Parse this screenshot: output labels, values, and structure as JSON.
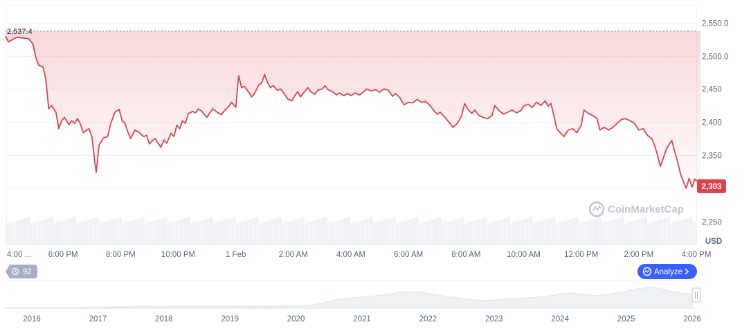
{
  "chart_data": {
    "type": "area",
    "unit_label": "USD",
    "y_axis": {
      "range": [
        2215,
        2575
      ],
      "ticks": [
        2250,
        2300,
        2350,
        2400,
        2450,
        2500,
        2550
      ],
      "tick_labels": [
        "2,250",
        "2,300",
        "2,350",
        "2,400",
        "2,450",
        "2,500.0",
        "2,550.0"
      ],
      "hidden_ticks": [
        2300
      ],
      "position": "right"
    },
    "x_axis": {
      "range_hours": [
        16,
        40
      ],
      "ticks": [
        {
          "t": 16,
          "label": "4:00 ..."
        },
        {
          "t": 18,
          "label": "6:00 PM"
        },
        {
          "t": 20,
          "label": "8:00 PM"
        },
        {
          "t": 22,
          "label": "10:00 PM"
        },
        {
          "t": 24,
          "label": "1 Feb"
        },
        {
          "t": 26,
          "label": "2:00 AM"
        },
        {
          "t": 28,
          "label": "4:00 AM"
        },
        {
          "t": 30,
          "label": "6:00 AM"
        },
        {
          "t": 32,
          "label": "8:00 AM"
        },
        {
          "t": 34,
          "label": "10:00 AM"
        },
        {
          "t": 36,
          "label": "12:00 PM"
        },
        {
          "t": 38,
          "label": "2:00 PM"
        },
        {
          "t": 40,
          "label": "4:00 PM"
        }
      ]
    },
    "open_price": 2537.4,
    "open_label": "2,537.4",
    "current_price": 2303,
    "current_label": "2,303",
    "grid": true,
    "series": [
      {
        "values": [
          [
            16.0,
            2530
          ],
          [
            16.1,
            2521
          ],
          [
            16.25,
            2525
          ],
          [
            16.4,
            2528
          ],
          [
            16.6,
            2527
          ],
          [
            16.8,
            2526
          ],
          [
            16.95,
            2518
          ],
          [
            17.05,
            2498
          ],
          [
            17.15,
            2486
          ],
          [
            17.3,
            2483
          ],
          [
            17.4,
            2465
          ],
          [
            17.5,
            2420
          ],
          [
            17.6,
            2425
          ],
          [
            17.75,
            2415
          ],
          [
            17.85,
            2390
          ],
          [
            17.95,
            2402
          ],
          [
            18.05,
            2407
          ],
          [
            18.2,
            2396
          ],
          [
            18.3,
            2402
          ],
          [
            18.4,
            2398
          ],
          [
            18.5,
            2405
          ],
          [
            18.6,
            2397
          ],
          [
            18.7,
            2384
          ],
          [
            18.8,
            2387
          ],
          [
            18.9,
            2390
          ],
          [
            19.0,
            2378
          ],
          [
            19.1,
            2340
          ],
          [
            19.15,
            2324
          ],
          [
            19.25,
            2365
          ],
          [
            19.4,
            2376
          ],
          [
            19.55,
            2378
          ],
          [
            19.65,
            2397
          ],
          [
            19.8,
            2415
          ],
          [
            19.95,
            2419
          ],
          [
            20.05,
            2402
          ],
          [
            20.15,
            2398
          ],
          [
            20.25,
            2385
          ],
          [
            20.35,
            2375
          ],
          [
            20.5,
            2388
          ],
          [
            20.65,
            2384
          ],
          [
            20.8,
            2378
          ],
          [
            20.9,
            2380
          ],
          [
            21.0,
            2367
          ],
          [
            21.1,
            2372
          ],
          [
            21.2,
            2375
          ],
          [
            21.3,
            2368
          ],
          [
            21.4,
            2362
          ],
          [
            21.5,
            2373
          ],
          [
            21.6,
            2368
          ],
          [
            21.75,
            2383
          ],
          [
            21.85,
            2378
          ],
          [
            21.95,
            2395
          ],
          [
            22.05,
            2390
          ],
          [
            22.15,
            2402
          ],
          [
            22.25,
            2398
          ],
          [
            22.35,
            2413
          ],
          [
            22.5,
            2416
          ],
          [
            22.6,
            2414
          ],
          [
            22.7,
            2420
          ],
          [
            22.8,
            2417
          ],
          [
            22.9,
            2412
          ],
          [
            23.0,
            2407
          ],
          [
            23.1,
            2414
          ],
          [
            23.2,
            2420
          ],
          [
            23.35,
            2415
          ],
          [
            23.5,
            2411
          ],
          [
            23.6,
            2417
          ],
          [
            23.75,
            2423
          ],
          [
            23.85,
            2430
          ],
          [
            24.0,
            2422
          ],
          [
            24.1,
            2470
          ],
          [
            24.2,
            2452
          ],
          [
            24.3,
            2454
          ],
          [
            24.45,
            2445
          ],
          [
            24.55,
            2438
          ],
          [
            24.65,
            2443
          ],
          [
            24.8,
            2456
          ],
          [
            24.9,
            2459
          ],
          [
            25.0,
            2472
          ],
          [
            25.1,
            2460
          ],
          [
            25.2,
            2452
          ],
          [
            25.3,
            2455
          ],
          [
            25.45,
            2448
          ],
          [
            25.55,
            2450
          ],
          [
            25.65,
            2445
          ],
          [
            25.8,
            2435
          ],
          [
            25.95,
            2432
          ],
          [
            26.05,
            2440
          ],
          [
            26.15,
            2446
          ],
          [
            26.25,
            2438
          ],
          [
            26.35,
            2444
          ],
          [
            26.5,
            2452
          ],
          [
            26.6,
            2446
          ],
          [
            26.75,
            2442
          ],
          [
            26.85,
            2448
          ],
          [
            27.0,
            2450
          ],
          [
            27.1,
            2455
          ],
          [
            27.2,
            2449
          ],
          [
            27.35,
            2446
          ],
          [
            27.5,
            2441
          ],
          [
            27.6,
            2444
          ],
          [
            27.75,
            2440
          ],
          [
            27.9,
            2443
          ],
          [
            28.0,
            2440
          ],
          [
            28.15,
            2444
          ],
          [
            28.3,
            2441
          ],
          [
            28.45,
            2446
          ],
          [
            28.55,
            2450
          ],
          [
            28.7,
            2447
          ],
          [
            28.85,
            2449
          ],
          [
            29.0,
            2445
          ],
          [
            29.15,
            2450
          ],
          [
            29.3,
            2448
          ],
          [
            29.45,
            2439
          ],
          [
            29.55,
            2443
          ],
          [
            29.7,
            2437
          ],
          [
            29.85,
            2426
          ],
          [
            30.0,
            2430
          ],
          [
            30.15,
            2429
          ],
          [
            30.3,
            2434
          ],
          [
            30.45,
            2430
          ],
          [
            30.6,
            2431
          ],
          [
            30.75,
            2425
          ],
          [
            30.9,
            2416
          ],
          [
            31.0,
            2412
          ],
          [
            31.1,
            2415
          ],
          [
            31.25,
            2408
          ],
          [
            31.4,
            2400
          ],
          [
            31.55,
            2392
          ],
          [
            31.7,
            2398
          ],
          [
            31.85,
            2410
          ],
          [
            31.95,
            2428
          ],
          [
            32.05,
            2420
          ],
          [
            32.2,
            2413
          ],
          [
            32.3,
            2418
          ],
          [
            32.45,
            2410
          ],
          [
            32.6,
            2407
          ],
          [
            32.75,
            2405
          ],
          [
            32.9,
            2410
          ],
          [
            33.0,
            2425
          ],
          [
            33.15,
            2417
          ],
          [
            33.3,
            2412
          ],
          [
            33.45,
            2415
          ],
          [
            33.6,
            2418
          ],
          [
            33.75,
            2414
          ],
          [
            33.9,
            2417
          ],
          [
            34.0,
            2424
          ],
          [
            34.15,
            2427
          ],
          [
            34.3,
            2422
          ],
          [
            34.45,
            2430
          ],
          [
            34.6,
            2425
          ],
          [
            34.75,
            2432
          ],
          [
            34.85,
            2424
          ],
          [
            34.95,
            2428
          ],
          [
            35.05,
            2410
          ],
          [
            35.15,
            2390
          ],
          [
            35.25,
            2385
          ],
          [
            35.4,
            2378
          ],
          [
            35.55,
            2388
          ],
          [
            35.7,
            2390
          ],
          [
            35.85,
            2384
          ],
          [
            36.0,
            2395
          ],
          [
            36.1,
            2418
          ],
          [
            36.25,
            2413
          ],
          [
            36.4,
            2410
          ],
          [
            36.55,
            2405
          ],
          [
            36.65,
            2388
          ],
          [
            36.8,
            2392
          ],
          [
            36.95,
            2388
          ],
          [
            37.1,
            2392
          ],
          [
            37.25,
            2398
          ],
          [
            37.4,
            2404
          ],
          [
            37.55,
            2405
          ],
          [
            37.7,
            2402
          ],
          [
            37.85,
            2398
          ],
          [
            38.0,
            2388
          ],
          [
            38.15,
            2390
          ],
          [
            38.3,
            2380
          ],
          [
            38.45,
            2375
          ],
          [
            38.55,
            2365
          ],
          [
            38.65,
            2350
          ],
          [
            38.75,
            2333
          ],
          [
            38.85,
            2345
          ],
          [
            38.95,
            2358
          ],
          [
            39.05,
            2366
          ],
          [
            39.15,
            2372
          ],
          [
            39.25,
            2355
          ],
          [
            39.35,
            2340
          ],
          [
            39.45,
            2322
          ],
          [
            39.55,
            2310
          ],
          [
            39.65,
            2300
          ],
          [
            39.75,
            2315
          ],
          [
            39.85,
            2302
          ],
          [
            39.95,
            2314
          ],
          [
            40.05,
            2310
          ],
          [
            40.15,
            2303
          ]
        ]
      }
    ],
    "volume_strip": true
  },
  "navigator": {
    "year_labels": [
      "2016",
      "2017",
      "2018",
      "2019",
      "2020",
      "2021",
      "2022",
      "2023",
      "2024",
      "2025",
      "2026"
    ],
    "profile": [
      0.02,
      0.02,
      0.02,
      0.03,
      0.03,
      0.02,
      0.03,
      0.03,
      0.04,
      0.04,
      0.05,
      0.05,
      0.06,
      0.06,
      0.05,
      0.06,
      0.06,
      0.07,
      0.07,
      0.06,
      0.07,
      0.07,
      0.08,
      0.07,
      0.07,
      0.08,
      0.08,
      0.09,
      0.12,
      0.18,
      0.28,
      0.35,
      0.38,
      0.42,
      0.45,
      0.5,
      0.56,
      0.6,
      0.58,
      0.52,
      0.45,
      0.4,
      0.35,
      0.3,
      0.28,
      0.3,
      0.33,
      0.35,
      0.38,
      0.4,
      0.45,
      0.52,
      0.55,
      0.5,
      0.45,
      0.48,
      0.55,
      0.62,
      0.7,
      0.75,
      0.72,
      0.62,
      0.55,
      0.5
    ]
  },
  "controls": {
    "history_count": "92",
    "analyze_label": "Analyze",
    "watermark": "CoinMarketCap"
  },
  "colors": {
    "line": "#e0424c",
    "badge": "#e0424c",
    "analyze_button": "#3861fb",
    "history_pill": "#a6b0c3",
    "grid": "#eff2f5"
  }
}
